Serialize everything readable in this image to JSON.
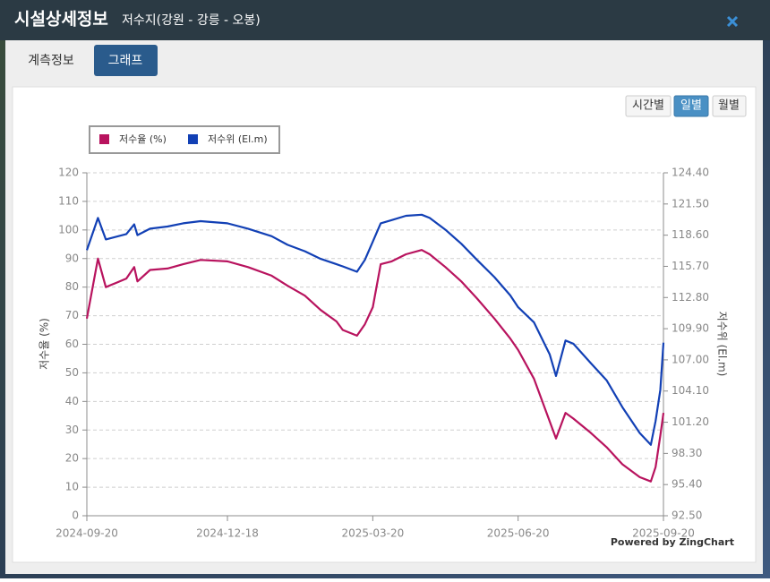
{
  "header": {
    "title": "시설상세정보",
    "subtitle": "저수지(강원 - 강릉 - 오봉)"
  },
  "tabs": [
    "계측정보",
    "그래프"
  ],
  "period_buttons": [
    "시간별",
    "일별",
    "월별"
  ],
  "chart_data": {
    "type": "line",
    "x": [
      "2024-09-20",
      "2024-09-27",
      "2024-10-02",
      "2024-10-15",
      "2024-10-20",
      "2024-10-22",
      "2024-10-30",
      "2024-11-10",
      "2024-11-20",
      "2024-12-01",
      "2024-12-18",
      "2024-12-31",
      "2025-01-15",
      "2025-01-25",
      "2025-02-05",
      "2025-02-15",
      "2025-02-25",
      "2025-03-01",
      "2025-03-10",
      "2025-03-15",
      "2025-03-20",
      "2025-03-25",
      "2025-04-01",
      "2025-04-10",
      "2025-04-20",
      "2025-04-25",
      "2025-05-05",
      "2025-05-15",
      "2025-05-25",
      "2025-06-05",
      "2025-06-15",
      "2025-06-20",
      "2025-06-30",
      "2025-07-10",
      "2025-07-14",
      "2025-07-20",
      "2025-07-25",
      "2025-08-05",
      "2025-08-15",
      "2025-08-25",
      "2025-09-05",
      "2025-09-12",
      "2025-09-15",
      "2025-09-18",
      "2025-09-20"
    ],
    "series": [
      {
        "name": "저수율 (%)",
        "color": "#b8135e",
        "values": [
          69,
          90,
          80,
          83,
          87,
          82,
          86,
          86.5,
          88,
          89.5,
          89,
          87,
          84,
          80.5,
          77,
          72,
          68,
          65,
          63,
          67,
          73,
          88,
          89,
          91.5,
          93,
          91.5,
          87,
          82,
          76,
          69,
          62,
          58,
          48,
          33,
          27,
          36,
          34,
          29,
          24,
          18,
          13.5,
          12,
          17,
          28,
          36
        ]
      },
      {
        "name": "저수위 (El.m)",
        "color": "#1240b5",
        "axis": "y2",
        "values": [
          117.2,
          120.2,
          118.2,
          118.7,
          119.6,
          118.6,
          119.2,
          119.4,
          119.7,
          119.9,
          119.7,
          119.2,
          118.5,
          117.7,
          117.1,
          116.4,
          115.9,
          115.7,
          115.2,
          116.3,
          118,
          119.7,
          120,
          120.4,
          120.5,
          120.2,
          119.1,
          117.8,
          116.3,
          114.7,
          113,
          111.9,
          110.5,
          107.5,
          105.5,
          108.8,
          108.5,
          106.7,
          105.1,
          102.6,
          100.2,
          99.1,
          101.3,
          104.2,
          108.6
        ]
      }
    ],
    "xlim": [
      "2024-09-20",
      "2025-09-20"
    ],
    "xticks": [
      "2024-09-20",
      "2024-12-18",
      "2025-03-20",
      "2025-06-20",
      "2025-09-20"
    ],
    "ylim": [
      0,
      120
    ],
    "yticks": [
      0,
      10,
      20,
      30,
      40,
      50,
      60,
      70,
      80,
      90,
      100,
      110,
      120
    ],
    "y2lim": [
      92.5,
      124.4
    ],
    "y2ticks": [
      {
        "value": 92.5,
        "label": "92.50"
      },
      {
        "value": 95.4,
        "label": "95.40"
      },
      {
        "value": 98.3,
        "label": "98.30"
      },
      {
        "value": 101.2,
        "label": "101.20"
      },
      {
        "value": 104.1,
        "label": "104.10"
      },
      {
        "value": 107,
        "label": "107.00"
      },
      {
        "value": 109.9,
        "label": "109.90"
      },
      {
        "value": 112.8,
        "label": "112.80"
      },
      {
        "value": 115.7,
        "label": "115.70"
      },
      {
        "value": 118.6,
        "label": "118.60"
      },
      {
        "value": 121.5,
        "label": "121.50"
      },
      {
        "value": 124.4,
        "label": "124.40"
      }
    ],
    "ylabel": "저수율 (%)",
    "y2label": "저수위 (El.m)",
    "grid": true,
    "legend": "top-left",
    "credit": "Powered by ZingChart"
  }
}
